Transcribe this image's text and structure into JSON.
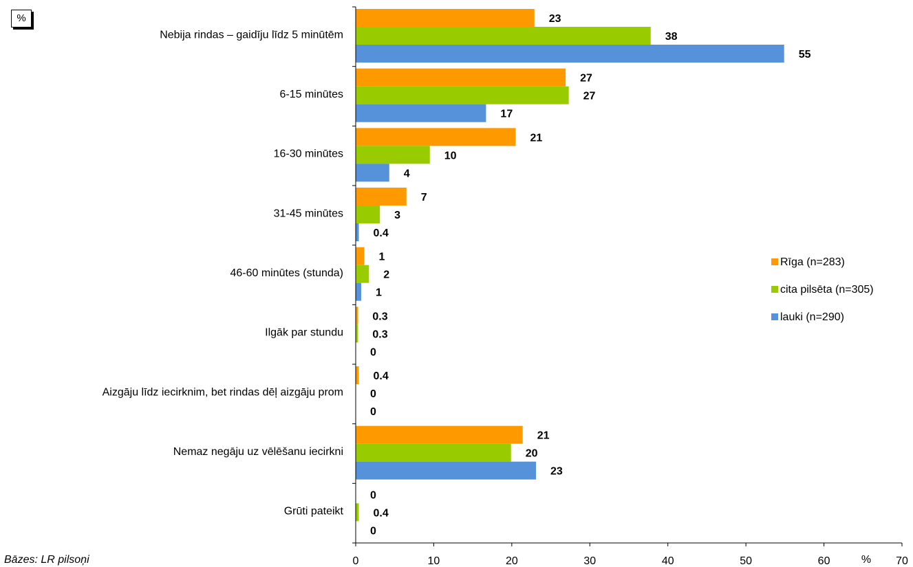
{
  "unit_box": "%",
  "footnote": "Bāzes: LR pilsoņi",
  "chart_data": {
    "type": "bar",
    "orientation": "horizontal",
    "categories": [
      "Nebija rindas – gaidīju līdz 5 minūtēm",
      "6-15 minūtes",
      "16-30 minūtes",
      "31-45 minūtes",
      "46-60 minūtes (stunda)",
      "Ilgāk par stundu",
      "Aizgāju līdz iecirknim, bet rindas dēļ aizgāju prom",
      "Nemaz negāju uz vēlēšanu iecirkni",
      "Grūti pateikt"
    ],
    "series": [
      {
        "name": "Rīga (n=283)",
        "color": "#ff9900",
        "values": [
          23,
          27,
          21,
          7,
          1,
          0.3,
          0.4,
          21,
          0
        ],
        "bar_values": [
          22.9,
          26.9,
          20.5,
          6.5,
          1.1,
          0.3,
          0.4,
          21.4,
          0
        ],
        "labels": [
          "23",
          "27",
          "21",
          "7",
          "1",
          "0.3",
          "0.4",
          "21",
          "0"
        ]
      },
      {
        "name": "cita pilsēta (n=305)",
        "color": "#99cc00",
        "values": [
          38,
          27,
          10,
          3,
          2,
          0.3,
          0,
          20,
          0.4
        ],
        "bar_values": [
          37.8,
          27.3,
          9.5,
          3.1,
          1.7,
          0.3,
          0,
          19.9,
          0.4
        ],
        "labels": [
          "38",
          "27",
          "10",
          "3",
          "2",
          "0.3",
          "0",
          "20",
          "0.4"
        ]
      },
      {
        "name": "lauki (n=290)",
        "color": "#5592d9",
        "values": [
          55,
          17,
          4,
          0.4,
          1,
          0,
          0,
          23,
          0
        ],
        "bar_values": [
          54.9,
          16.7,
          4.3,
          0.4,
          0.7,
          0,
          0,
          23.1,
          0
        ],
        "labels": [
          "55",
          "17",
          "4",
          "0.4",
          "1",
          "0",
          "0",
          "23",
          "0"
        ]
      }
    ],
    "xlim": [
      0,
      70
    ],
    "xticks": [
      "0",
      "10",
      "20",
      "30",
      "40",
      "50",
      "60",
      "70"
    ],
    "xlabel": "%",
    "grid": false,
    "legend_position": "right"
  }
}
